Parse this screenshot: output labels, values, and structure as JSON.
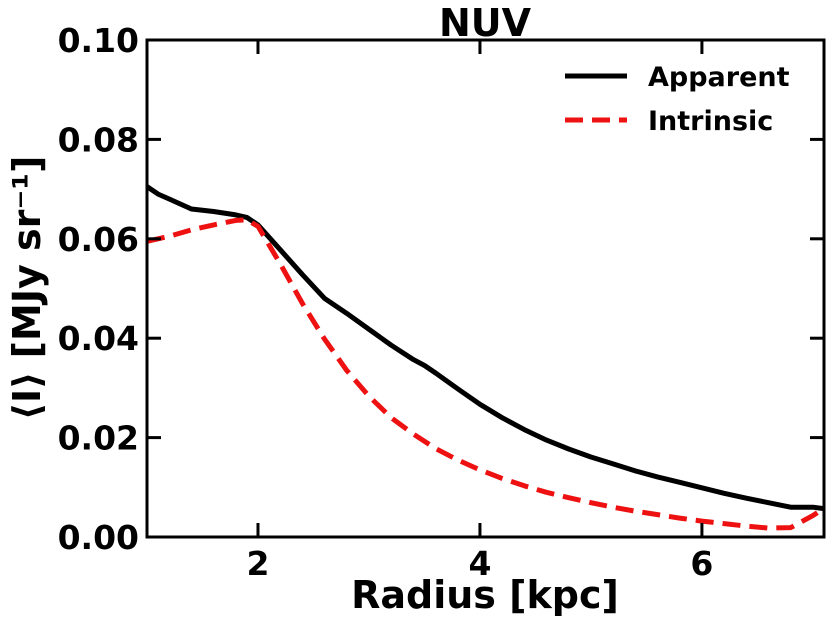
{
  "chart_data": {
    "type": "line",
    "title": "NUV",
    "xlabel": "Radius [kpc]",
    "ylabel": "⟨I⟩ [MJy sr⁻¹]",
    "xlim": [
      1.0,
      7.1
    ],
    "ylim": [
      0.0,
      0.1
    ],
    "xticks": [
      2,
      4,
      6
    ],
    "xtick_labels": [
      "2",
      "4",
      "6"
    ],
    "yticks": [
      0.0,
      0.02,
      0.04,
      0.06,
      0.08,
      0.1
    ],
    "ytick_labels": [
      "0.00",
      "0.02",
      "0.04",
      "0.06",
      "0.08",
      "0.10"
    ],
    "grid": false,
    "legend_position": "top-right",
    "series": [
      {
        "name": "Apparent",
        "color": "#000000",
        "dash": "solid",
        "x": [
          1.0,
          1.1,
          1.2,
          1.3,
          1.4,
          1.6,
          1.8,
          1.9,
          2.0,
          2.1,
          2.2,
          2.4,
          2.6,
          2.7,
          2.8,
          3.0,
          3.2,
          3.4,
          3.5,
          3.6,
          3.8,
          4.0,
          4.2,
          4.4,
          4.6,
          4.8,
          5.0,
          5.2,
          5.4,
          5.6,
          5.8,
          6.0,
          6.2,
          6.4,
          6.6,
          6.8,
          7.0,
          7.1
        ],
        "y": [
          0.0705,
          0.069,
          0.068,
          0.067,
          0.066,
          0.0655,
          0.0648,
          0.0643,
          0.0628,
          0.0603,
          0.0578,
          0.0528,
          0.048,
          0.0465,
          0.045,
          0.0418,
          0.0386,
          0.0357,
          0.0345,
          0.033,
          0.0298,
          0.0267,
          0.024,
          0.0216,
          0.0195,
          0.0177,
          0.0161,
          0.0147,
          0.0133,
          0.0121,
          0.011,
          0.0099,
          0.0088,
          0.0078,
          0.0069,
          0.006,
          0.006,
          0.0057
        ]
      },
      {
        "name": "Intrinsic",
        "color": "#ee1111",
        "dash": "dashed",
        "x": [
          1.0,
          1.2,
          1.4,
          1.6,
          1.8,
          1.9,
          2.0,
          2.2,
          2.4,
          2.6,
          2.8,
          3.0,
          3.2,
          3.4,
          3.6,
          3.8,
          4.0,
          4.2,
          4.4,
          4.6,
          4.8,
          5.0,
          5.2,
          5.4,
          5.6,
          5.8,
          6.0,
          6.2,
          6.4,
          6.6,
          6.8,
          7.0,
          7.1
        ],
        "y": [
          0.0595,
          0.0605,
          0.0618,
          0.0628,
          0.0637,
          0.0638,
          0.0625,
          0.055,
          0.047,
          0.0398,
          0.0335,
          0.0283,
          0.024,
          0.0207,
          0.0178,
          0.0155,
          0.0135,
          0.0118,
          0.0103,
          0.009,
          0.0079,
          0.0069,
          0.006,
          0.0052,
          0.0045,
          0.0038,
          0.0032,
          0.0027,
          0.0022,
          0.0018,
          0.0019,
          0.0043,
          0.0058
        ]
      }
    ]
  }
}
